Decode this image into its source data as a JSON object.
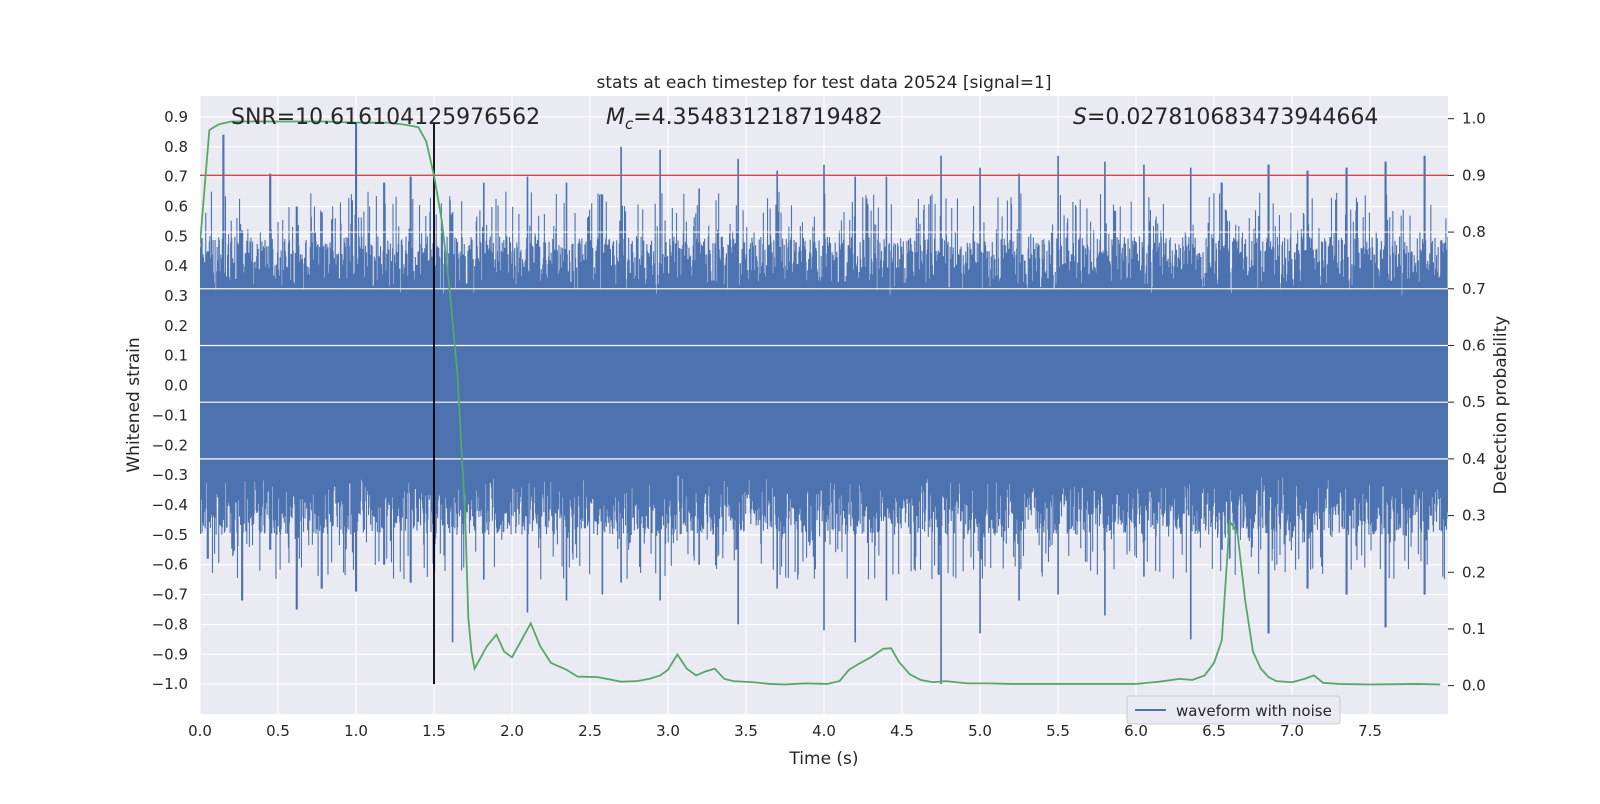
{
  "chart_data": {
    "type": "line",
    "title": "stats at each timestep for test data 20524 [signal=1]",
    "xlabel": "Time (s)",
    "ylabel": "Whitened strain",
    "y2label": "Detection probability",
    "xlim": [
      0.0,
      8.0
    ],
    "ylim": [
      -1.1,
      0.97
    ],
    "y2lim": [
      -0.05,
      1.04
    ],
    "xticks": [
      "0.0",
      "0.5",
      "1.0",
      "1.5",
      "2.0",
      "2.5",
      "3.0",
      "3.5",
      "4.0",
      "4.5",
      "5.0",
      "5.5",
      "6.0",
      "6.5",
      "7.0",
      "7.5"
    ],
    "yticks": [
      "0.9",
      "0.8",
      "0.7",
      "0.6",
      "0.5",
      "0.4",
      "0.3",
      "0.2",
      "0.1",
      "0.0",
      "−0.1",
      "−0.2",
      "−0.3",
      "−0.4",
      "−0.5",
      "−0.6",
      "−0.7",
      "−0.8",
      "−0.9",
      "−1.0"
    ],
    "y2ticks": [
      "1.0",
      "0.9",
      "0.8",
      "0.7",
      "0.6",
      "0.5",
      "0.4",
      "0.3",
      "0.2",
      "0.1",
      "0.0"
    ],
    "grid": true,
    "legend": {
      "placement": "lower-right",
      "entries": [
        "waveform with noise"
      ]
    },
    "annotations": {
      "snr": "SNR=10.616104125976562",
      "mc": "=4.354831218719482",
      "mc_symbol": "M",
      "mc_sub": "c",
      "s": "=0.027810683473944664",
      "s_symbol": "S"
    },
    "threshold_line": {
      "y2": 0.9,
      "color": "#c44e52"
    },
    "vertical_marker": {
      "x": 1.5,
      "y_range": [
        -1.0,
        0.88
      ],
      "color": "#000000"
    },
    "series": [
      {
        "name": "waveform with noise",
        "color": "#4c72b0",
        "description": "dense noisy strain trace",
        "envelope_peaks": [
          [
            0.05,
            0.45,
            -0.58
          ],
          [
            0.15,
            0.84,
            -0.45
          ],
          [
            0.27,
            0.52,
            -0.72
          ],
          [
            0.45,
            0.71,
            -0.55
          ],
          [
            0.62,
            0.6,
            -0.75
          ],
          [
            0.78,
            0.58,
            -0.68
          ],
          [
            1.0,
            0.88,
            -0.69
          ],
          [
            1.18,
            0.68,
            -0.6
          ],
          [
            1.35,
            0.7,
            -0.66
          ],
          [
            1.62,
            0.58,
            -0.86
          ],
          [
            1.82,
            0.68,
            -0.65
          ],
          [
            2.1,
            0.7,
            -0.76
          ],
          [
            2.35,
            0.68,
            -0.72
          ],
          [
            2.58,
            0.64,
            -0.7
          ],
          [
            2.7,
            0.8,
            -0.66
          ],
          [
            2.95,
            0.79,
            -0.72
          ],
          [
            3.2,
            0.66,
            -0.6
          ],
          [
            3.45,
            0.76,
            -0.8
          ],
          [
            3.7,
            0.72,
            -0.68
          ],
          [
            4.0,
            0.74,
            -0.82
          ],
          [
            4.2,
            0.7,
            -0.86
          ],
          [
            4.4,
            0.7,
            -0.72
          ],
          [
            4.75,
            0.77,
            -1.0
          ],
          [
            5.0,
            0.73,
            -0.83
          ],
          [
            5.25,
            0.71,
            -0.72
          ],
          [
            5.5,
            0.77,
            -0.7
          ],
          [
            5.8,
            0.75,
            -0.77
          ],
          [
            6.05,
            0.74,
            -0.64
          ],
          [
            6.35,
            0.73,
            -0.85
          ],
          [
            6.55,
            0.68,
            -0.55
          ],
          [
            6.85,
            0.74,
            -0.83
          ],
          [
            7.1,
            0.72,
            -0.68
          ],
          [
            7.35,
            0.73,
            -0.7
          ],
          [
            7.6,
            0.75,
            -0.81
          ],
          [
            7.85,
            0.77,
            -0.7
          ]
        ]
      },
      {
        "name": "detection probability",
        "color": "#55a868",
        "axis": "y2",
        "x": [
          0.0,
          0.06,
          0.12,
          0.2,
          0.4,
          0.8,
          1.0,
          1.2,
          1.3,
          1.4,
          1.45,
          1.5,
          1.55,
          1.6,
          1.65,
          1.7,
          1.72,
          1.74,
          1.76,
          1.8,
          1.84,
          1.9,
          1.95,
          2.0,
          2.06,
          2.12,
          2.18,
          2.25,
          2.35,
          2.42,
          2.55,
          2.7,
          2.8,
          2.88,
          2.95,
          3.0,
          3.06,
          3.12,
          3.18,
          3.24,
          3.3,
          3.36,
          3.42,
          3.55,
          3.65,
          3.75,
          3.88,
          4.02,
          4.1,
          4.16,
          4.22,
          4.3,
          4.38,
          4.43,
          4.48,
          4.55,
          4.62,
          4.7,
          4.78,
          4.85,
          4.92,
          5.05,
          5.2,
          5.4,
          5.6,
          5.8,
          6.0,
          6.15,
          6.28,
          6.36,
          6.44,
          6.5,
          6.55,
          6.6,
          6.65,
          6.7,
          6.75,
          6.8,
          6.85,
          6.9,
          7.0,
          7.08,
          7.14,
          7.2,
          7.3,
          7.5,
          7.8,
          7.95
        ],
        "values": [
          0.78,
          0.98,
          0.99,
          0.995,
          0.995,
          0.995,
          0.993,
          0.993,
          0.99,
          0.985,
          0.96,
          0.9,
          0.82,
          0.7,
          0.55,
          0.3,
          0.12,
          0.06,
          0.03,
          0.05,
          0.07,
          0.09,
          0.06,
          0.05,
          0.08,
          0.11,
          0.07,
          0.04,
          0.028,
          0.016,
          0.015,
          0.007,
          0.008,
          0.012,
          0.018,
          0.028,
          0.055,
          0.03,
          0.018,
          0.025,
          0.03,
          0.012,
          0.008,
          0.006,
          0.003,
          0.002,
          0.004,
          0.003,
          0.008,
          0.028,
          0.038,
          0.05,
          0.065,
          0.066,
          0.042,
          0.02,
          0.01,
          0.006,
          0.008,
          0.006,
          0.004,
          0.004,
          0.003,
          0.003,
          0.003,
          0.003,
          0.003,
          0.007,
          0.012,
          0.01,
          0.018,
          0.04,
          0.08,
          0.29,
          0.27,
          0.15,
          0.06,
          0.03,
          0.015,
          0.008,
          0.006,
          0.012,
          0.018,
          0.005,
          0.003,
          0.002,
          0.003,
          0.002
        ]
      }
    ]
  }
}
